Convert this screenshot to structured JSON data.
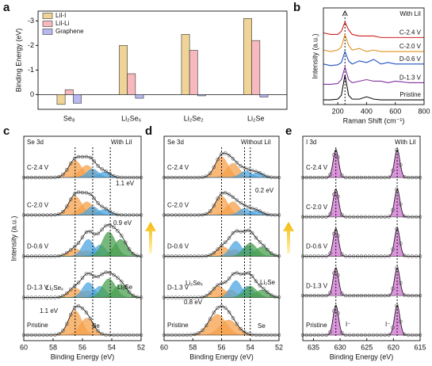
{
  "chart_data": [
    {
      "type": "bar",
      "label": "a",
      "ylabel": "Binding Energy (eV)",
      "categories": [
        "Se₈",
        "Li₂Se₆",
        "Li₂Se₂",
        "Li₂Se"
      ],
      "series": [
        {
          "name": "LiI-I",
          "color": "#f0d497",
          "values": [
            0.4,
            -2.0,
            -2.45,
            -3.1
          ]
        },
        {
          "name": "LiI-Li",
          "color": "#f7b9be",
          "values": [
            -0.2,
            -0.85,
            -1.8,
            -2.2
          ]
        },
        {
          "name": "Graphene",
          "color": "#b9b9f2",
          "values": [
            0.35,
            0.15,
            0.05,
            0.1
          ]
        }
      ],
      "ylim": [
        0.6,
        -3.4
      ],
      "yticks": [
        0,
        -1,
        -2,
        -3
      ],
      "legend": "upper-left"
    },
    {
      "type": "line",
      "label": "b",
      "xlabel": "Raman Shift (cm⁻¹)",
      "ylabel": "Intensity (a.u.)",
      "note": "With LiI",
      "x": [
        100,
        150,
        200,
        225,
        250,
        275,
        300,
        350,
        400,
        450,
        500,
        550,
        600,
        700,
        800
      ],
      "series": [
        {
          "name": "C-2.4 V",
          "color": "#d02020",
          "values": [
            4.6,
            4.5,
            4.5,
            4.7,
            5.3,
            4.8,
            4.5,
            4.4,
            4.4,
            4.4,
            4.3,
            4.3,
            4.3,
            4.3,
            4.3
          ]
        },
        {
          "name": "C-2.0 V",
          "color": "#e09020",
          "values": [
            3.5,
            3.4,
            3.5,
            3.7,
            4.5,
            3.8,
            3.5,
            3.6,
            3.4,
            3.5,
            3.4,
            3.4,
            3.4,
            3.4,
            3.4
          ]
        },
        {
          "name": "D-0.6 V",
          "color": "#2050c0",
          "values": [
            2.6,
            2.5,
            2.55,
            2.7,
            3.4,
            2.8,
            2.6,
            2.8,
            2.7,
            2.9,
            2.6,
            2.7,
            2.6,
            2.6,
            2.6
          ]
        },
        {
          "name": "D-1.3 V",
          "color": "#8030a0",
          "values": [
            1.3,
            1.3,
            1.35,
            1.6,
            2.4,
            1.6,
            1.4,
            1.5,
            1.6,
            1.5,
            1.5,
            1.4,
            1.5,
            1.4,
            1.4
          ]
        },
        {
          "name": "Pristine",
          "color": "#111111",
          "values": [
            0.3,
            0.3,
            0.35,
            0.6,
            1.9,
            0.6,
            0.35,
            0.35,
            0.5,
            0.35,
            0.3,
            0.3,
            0.3,
            0.3,
            0.3
          ]
        }
      ],
      "xlim": [
        100,
        800
      ],
      "xticks": [
        200,
        400,
        600,
        800
      ],
      "ylim": [
        0,
        6.2
      ],
      "vlines": [
        250
      ]
    },
    {
      "type": "area",
      "label": "c",
      "xlabel": "Binding Energy (eV)",
      "ylabel": "Intensity (a.u.)",
      "annotations": [
        "Se 3d",
        "With LiI",
        "1.1 eV",
        "0.9 eV",
        "Li₂Seₓ",
        "Li₂Se",
        "1.1 eV",
        "Se"
      ],
      "xlim": [
        60,
        52
      ],
      "xticks": [
        60,
        58,
        56,
        54,
        52
      ],
      "ylim": [
        -0.3,
        10.6
      ],
      "vlines": [
        56.5,
        55.3,
        54.1
      ],
      "spectra": [
        {
          "name": "Pristine",
          "offset": 0,
          "components": [
            {
              "center": 56.5,
              "height": 1.3,
              "width": 0.45,
              "color": "#f5a04a"
            },
            {
              "center": 55.7,
              "height": 0.9,
              "width": 0.45,
              "color": "#f5a04a"
            }
          ]
        },
        {
          "name": "D-1.3 V",
          "offset": 2.0,
          "components": [
            {
              "center": 56.5,
              "height": 0.5,
              "width": 0.45,
              "color": "#f5a04a"
            },
            {
              "center": 55.7,
              "height": 0.35,
              "width": 0.45,
              "color": "#f5a04a"
            },
            {
              "center": 55.6,
              "height": 0.8,
              "width": 0.4,
              "color": "#4da6e0"
            },
            {
              "center": 54.8,
              "height": 0.6,
              "width": 0.4,
              "color": "#4da6e0"
            },
            {
              "center": 54.2,
              "height": 1.0,
              "width": 0.45,
              "color": "#4aa050"
            },
            {
              "center": 53.4,
              "height": 0.7,
              "width": 0.45,
              "color": "#4aa050"
            }
          ]
        },
        {
          "name": "D-0.6 V",
          "offset": 4.2,
          "components": [
            {
              "center": 56.5,
              "height": 0.4,
              "width": 0.45,
              "color": "#f5a04a"
            },
            {
              "center": 55.7,
              "height": 0.3,
              "width": 0.45,
              "color": "#f5a04a"
            },
            {
              "center": 55.6,
              "height": 0.9,
              "width": 0.4,
              "color": "#4da6e0"
            },
            {
              "center": 54.8,
              "height": 0.6,
              "width": 0.4,
              "color": "#4da6e0"
            },
            {
              "center": 54.2,
              "height": 1.3,
              "width": 0.45,
              "color": "#4aa050"
            },
            {
              "center": 53.4,
              "height": 0.9,
              "width": 0.45,
              "color": "#4aa050"
            }
          ]
        },
        {
          "name": "C-2.0 V",
          "offset": 6.4,
          "components": [
            {
              "center": 56.5,
              "height": 1.0,
              "width": 0.45,
              "color": "#f5a04a"
            },
            {
              "center": 55.7,
              "height": 0.7,
              "width": 0.45,
              "color": "#f5a04a"
            },
            {
              "center": 55.3,
              "height": 0.45,
              "width": 0.4,
              "color": "#4da6e0"
            },
            {
              "center": 54.5,
              "height": 0.3,
              "width": 0.4,
              "color": "#4da6e0"
            }
          ]
        },
        {
          "name": "C-2.4 V",
          "offset": 8.4,
          "components": [
            {
              "center": 56.5,
              "height": 0.9,
              "width": 0.45,
              "color": "#f5a04a"
            },
            {
              "center": 55.7,
              "height": 0.65,
              "width": 0.45,
              "color": "#f5a04a"
            },
            {
              "center": 55.3,
              "height": 0.45,
              "width": 0.4,
              "color": "#4da6e0"
            },
            {
              "center": 54.5,
              "height": 0.3,
              "width": 0.4,
              "color": "#4da6e0"
            }
          ]
        }
      ]
    },
    {
      "type": "area",
      "label": "d",
      "xlabel": "Binding Energy (eV)",
      "annotations": [
        "Se 3d",
        "Without LiI",
        "0.2 eV",
        "Li₂Seₓ",
        "Li₂Se",
        "0.8 eV",
        "Se"
      ],
      "xlim": [
        60,
        52
      ],
      "xticks": [
        60,
        58,
        56,
        54,
        52
      ],
      "ylim": [
        -0.3,
        10.6
      ],
      "vlines": [
        56.0,
        54.4,
        54.0
      ],
      "spectra": [
        {
          "name": "Pristine",
          "offset": 0,
          "components": [
            {
              "center": 56.3,
              "height": 1.1,
              "width": 0.6,
              "color": "#f5a04a"
            },
            {
              "center": 55.5,
              "height": 0.8,
              "width": 0.6,
              "color": "#f5a04a"
            }
          ]
        },
        {
          "name": "D-1.3 V",
          "offset": 2.0,
          "components": [
            {
              "center": 56.2,
              "height": 0.6,
              "width": 0.45,
              "color": "#f5a04a"
            },
            {
              "center": 55.4,
              "height": 0.4,
              "width": 0.45,
              "color": "#f5a04a"
            },
            {
              "center": 55.0,
              "height": 0.9,
              "width": 0.4,
              "color": "#4da6e0"
            },
            {
              "center": 54.2,
              "height": 0.6,
              "width": 0.4,
              "color": "#4da6e0"
            },
            {
              "center": 54.0,
              "height": 0.6,
              "width": 0.45,
              "color": "#4aa050"
            },
            {
              "center": 53.2,
              "height": 0.4,
              "width": 0.45,
              "color": "#4aa050"
            }
          ]
        },
        {
          "name": "D-0.6 V",
          "offset": 4.2,
          "components": [
            {
              "center": 55.9,
              "height": 0.5,
              "width": 0.45,
              "color": "#f5a04a"
            },
            {
              "center": 55.1,
              "height": 0.35,
              "width": 0.45,
              "color": "#f5a04a"
            },
            {
              "center": 55.0,
              "height": 0.8,
              "width": 0.4,
              "color": "#4da6e0"
            },
            {
              "center": 54.2,
              "height": 0.55,
              "width": 0.4,
              "color": "#4da6e0"
            },
            {
              "center": 54.0,
              "height": 0.7,
              "width": 0.45,
              "color": "#4aa050"
            },
            {
              "center": 53.2,
              "height": 0.5,
              "width": 0.45,
              "color": "#4aa050"
            }
          ]
        },
        {
          "name": "C-2.0 V",
          "offset": 6.4,
          "components": [
            {
              "center": 56.0,
              "height": 1.0,
              "width": 0.45,
              "color": "#f5a04a"
            },
            {
              "center": 55.2,
              "height": 0.7,
              "width": 0.45,
              "color": "#f5a04a"
            },
            {
              "center": 54.4,
              "height": 0.35,
              "width": 0.4,
              "color": "#4da6e0"
            },
            {
              "center": 53.6,
              "height": 0.25,
              "width": 0.4,
              "color": "#4da6e0"
            }
          ]
        },
        {
          "name": "C-2.4 V",
          "offset": 8.4,
          "components": [
            {
              "center": 56.0,
              "height": 1.1,
              "width": 0.45,
              "color": "#f5a04a"
            },
            {
              "center": 55.2,
              "height": 0.75,
              "width": 0.45,
              "color": "#f5a04a"
            },
            {
              "center": 54.3,
              "height": 0.35,
              "width": 0.4,
              "color": "#4da6e0"
            },
            {
              "center": 53.5,
              "height": 0.25,
              "width": 0.4,
              "color": "#4da6e0"
            }
          ]
        }
      ]
    },
    {
      "type": "area",
      "label": "e",
      "xlabel": "Binding Energy (eV)",
      "annotations": [
        "I 3d",
        "With LiI",
        "I⁻",
        "I⁻"
      ],
      "xlim": [
        637,
        615
      ],
      "xticks": [
        635,
        630,
        625,
        620,
        615
      ],
      "ylim": [
        -0.3,
        10.6
      ],
      "vlines": [
        630.8,
        619.3
      ],
      "spectra": [
        {
          "name": "Pristine",
          "offset": 0,
          "components": [
            {
              "center": 630.8,
              "height": 1.6,
              "width": 0.5,
              "color": "#d070d0"
            },
            {
              "center": 619.3,
              "height": 1.6,
              "width": 0.5,
              "color": "#d070d0"
            }
          ]
        },
        {
          "name": "D-1.3 V",
          "offset": 2.1,
          "components": [
            {
              "center": 630.8,
              "height": 1.5,
              "width": 0.5,
              "color": "#d070d0"
            },
            {
              "center": 619.3,
              "height": 1.5,
              "width": 0.5,
              "color": "#d070d0"
            }
          ]
        },
        {
          "name": "D-0.6 V",
          "offset": 4.2,
          "components": [
            {
              "center": 630.8,
              "height": 1.5,
              "width": 0.5,
              "color": "#d070d0"
            },
            {
              "center": 619.3,
              "height": 1.5,
              "width": 0.5,
              "color": "#d070d0"
            }
          ]
        },
        {
          "name": "C-2.0 V",
          "offset": 6.3,
          "components": [
            {
              "center": 630.8,
              "height": 1.5,
              "width": 0.5,
              "color": "#d070d0"
            },
            {
              "center": 619.3,
              "height": 1.5,
              "width": 0.5,
              "color": "#d070d0"
            }
          ]
        },
        {
          "name": "C-2.4 V",
          "offset": 8.4,
          "components": [
            {
              "center": 630.8,
              "height": 1.5,
              "width": 0.5,
              "color": "#d070d0"
            },
            {
              "center": 619.3,
              "height": 1.5,
              "width": 0.5,
              "color": "#d070d0"
            }
          ]
        }
      ]
    }
  ]
}
